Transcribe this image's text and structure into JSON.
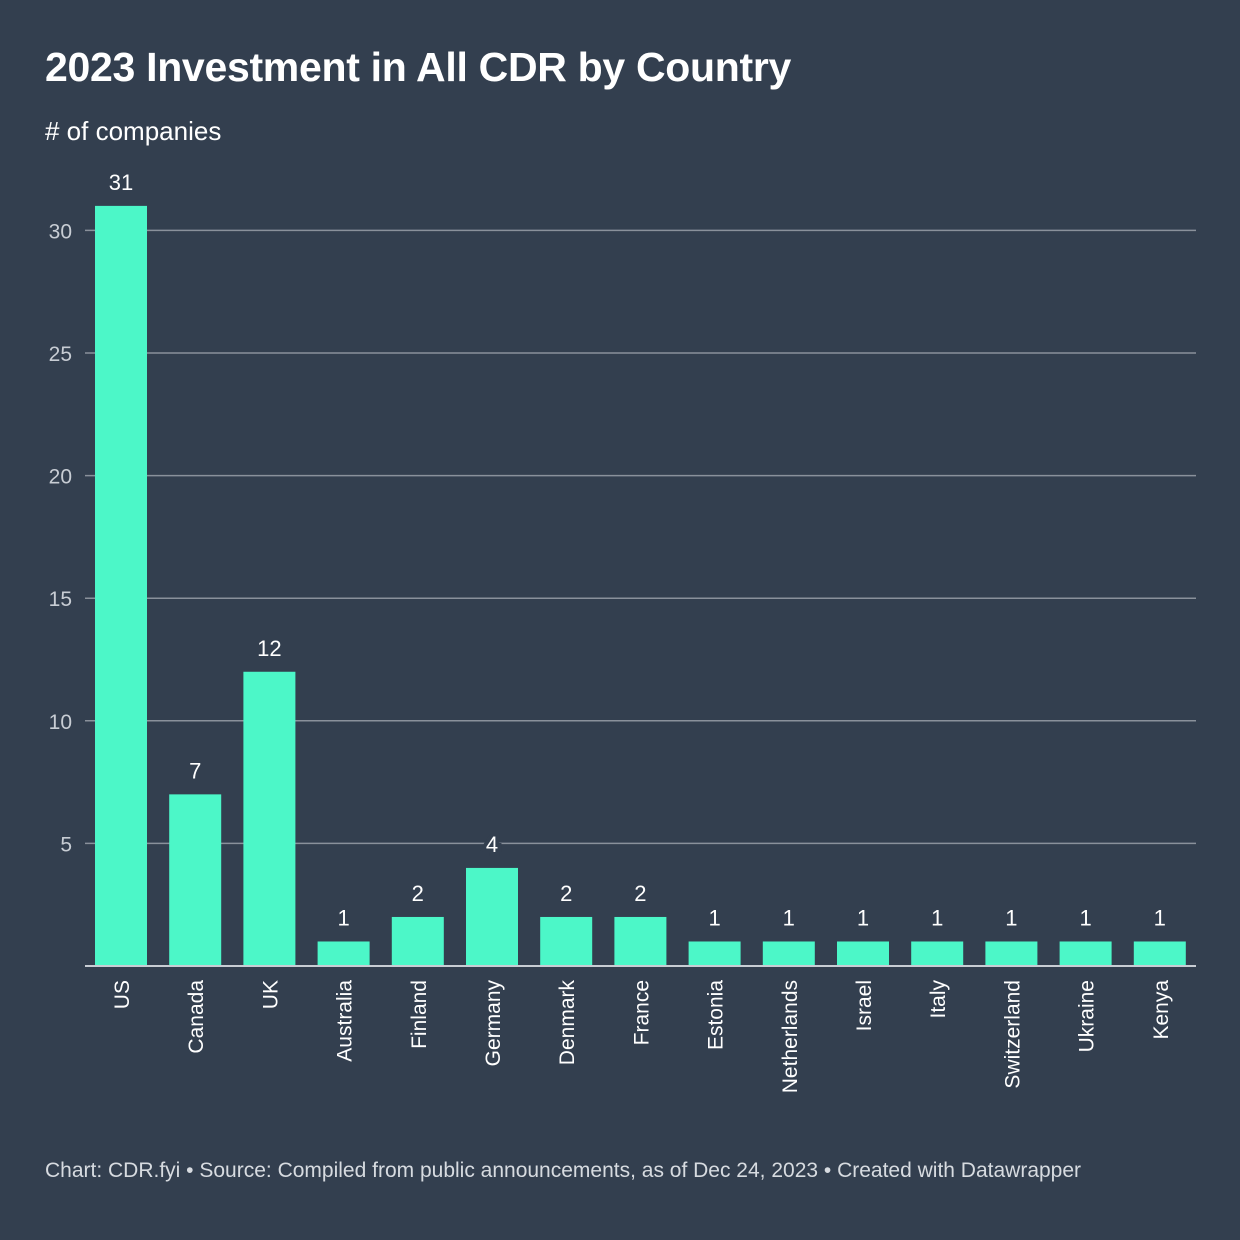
{
  "title": "2023 Investment in All CDR by Country",
  "subtitle": "# of companies",
  "footer": "Chart: CDR.fyi • Source: Compiled from public announcements, as of Dec 24, 2023 • Created with Datawrapper",
  "colors": {
    "background": "#333f4f",
    "bar": "#4cf7c8",
    "grid": "#8a919b",
    "axis": "#c8cdd4"
  },
  "chart_data": {
    "type": "bar",
    "title": "2023 Investment in All CDR by Country",
    "ylabel": "# of companies",
    "xlabel": "",
    "categories": [
      "US",
      "Canada",
      "UK",
      "Australia",
      "Finland",
      "Germany",
      "Denmark",
      "France",
      "Estonia",
      "Netherlands",
      "Israel",
      "Italy",
      "Switzerland",
      "Ukraine",
      "Kenya"
    ],
    "values": [
      31,
      7,
      12,
      1,
      2,
      4,
      2,
      2,
      1,
      1,
      1,
      1,
      1,
      1,
      1
    ],
    "ylim": [
      0,
      31
    ],
    "yticks": [
      5,
      10,
      15,
      20,
      25,
      30
    ],
    "grid": true,
    "data_labels": true
  }
}
